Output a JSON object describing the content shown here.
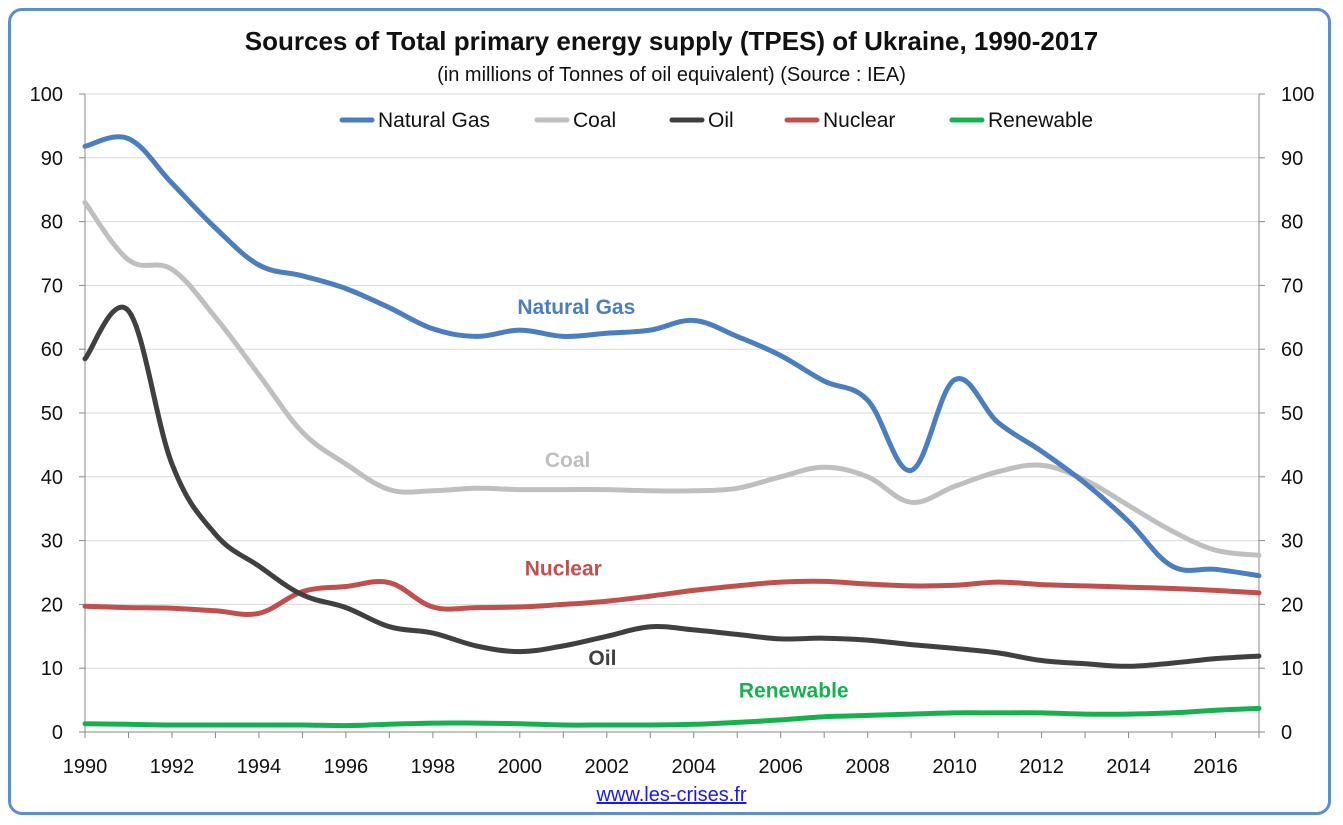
{
  "chart_data": {
    "type": "line",
    "title": "Sources of Total primary energy supply (TPES) of Ukraine, 1990-2017",
    "subtitle": "(in millions of Tonnes of oil equivalent) (Source : IEA)",
    "source_link": "www.les-crises.fr",
    "xlabel": "",
    "ylabel": "",
    "xlim": [
      1990,
      2017
    ],
    "ylim": [
      0,
      100
    ],
    "x_ticks": [
      1990,
      1992,
      1994,
      1996,
      1998,
      2000,
      2002,
      2004,
      2006,
      2008,
      2010,
      2012,
      2014,
      2016
    ],
    "y_ticks": [
      0,
      10,
      20,
      30,
      40,
      50,
      60,
      70,
      80,
      90,
      100
    ],
    "grid": "horizontal",
    "legend_position": "top-center",
    "x": [
      1990,
      1991,
      1992,
      1993,
      1994,
      1995,
      1996,
      1997,
      1998,
      1999,
      2000,
      2001,
      2002,
      2003,
      2004,
      2005,
      2006,
      2007,
      2008,
      2009,
      2010,
      2011,
      2012,
      2013,
      2014,
      2015,
      2016,
      2017
    ],
    "series": [
      {
        "name": "Natural Gas",
        "color": "#4a7ebf",
        "label": "Natural Gas",
        "label_at": [
          2001.3,
          65.5
        ],
        "values": [
          91.8,
          93.0,
          86.0,
          79.0,
          73.2,
          71.5,
          69.5,
          66.5,
          63.2,
          62.0,
          63.0,
          62.0,
          62.5,
          63.0,
          64.5,
          62.0,
          59.0,
          55.0,
          52.0,
          41.0,
          55.2,
          48.5,
          44.0,
          39.0,
          33.0,
          26.0,
          25.5,
          24.5
        ]
      },
      {
        "name": "Coal",
        "color": "#bfbfbf",
        "label": "Coal",
        "label_at": [
          2001.1,
          41.5
        ],
        "values": [
          83.0,
          74.0,
          72.5,
          65.0,
          56.0,
          47.0,
          42.0,
          38.0,
          37.8,
          38.2,
          38.0,
          38.0,
          38.0,
          37.8,
          37.8,
          38.2,
          40.0,
          41.5,
          40.0,
          36.0,
          38.5,
          40.8,
          41.8,
          39.5,
          35.5,
          31.5,
          28.5,
          27.7
        ]
      },
      {
        "name": "Oil",
        "color": "#404040",
        "label": "Oil",
        "label_at": [
          2001.9,
          10.5
        ],
        "values": [
          58.5,
          66.0,
          42.0,
          31.0,
          26.0,
          21.5,
          19.5,
          16.5,
          15.5,
          13.5,
          12.6,
          13.5,
          15.0,
          16.5,
          16.0,
          15.3,
          14.6,
          14.7,
          14.4,
          13.7,
          13.1,
          12.4,
          11.2,
          10.7,
          10.3,
          10.8,
          11.5,
          11.9
        ]
      },
      {
        "name": "Nuclear",
        "color": "#c0504d",
        "label": "Nuclear",
        "label_at": [
          2001.0,
          24.5
        ],
        "values": [
          19.7,
          19.5,
          19.4,
          19.0,
          18.6,
          22.0,
          22.8,
          23.4,
          19.6,
          19.5,
          19.6,
          20.0,
          20.5,
          21.3,
          22.2,
          22.9,
          23.5,
          23.6,
          23.2,
          22.9,
          23.0,
          23.5,
          23.1,
          22.9,
          22.7,
          22.5,
          22.2,
          21.8
        ]
      },
      {
        "name": "Renewable",
        "color": "#17b04f",
        "label": "Renewable",
        "label_at": [
          2006.3,
          5.4
        ],
        "values": [
          1.3,
          1.2,
          1.1,
          1.1,
          1.1,
          1.1,
          1.0,
          1.2,
          1.4,
          1.4,
          1.3,
          1.1,
          1.1,
          1.1,
          1.2,
          1.5,
          1.9,
          2.4,
          2.6,
          2.8,
          3.0,
          3.0,
          3.0,
          2.8,
          2.8,
          3.0,
          3.4,
          3.7
        ]
      }
    ]
  }
}
